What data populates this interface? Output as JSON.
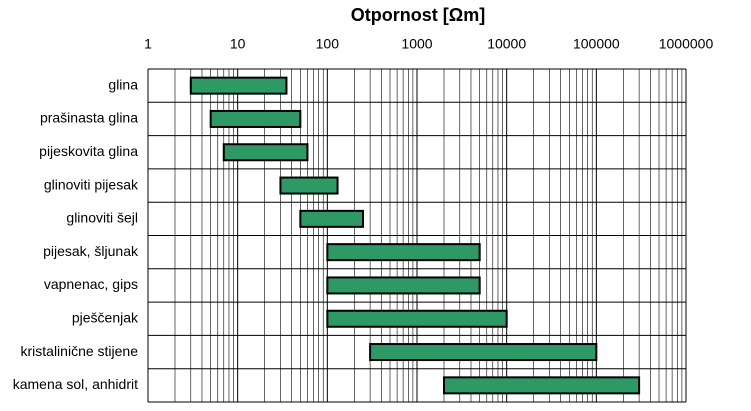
{
  "chart_data": {
    "type": "range-bar",
    "title": "Otpornost  [Ωm]",
    "categories": [
      "glina",
      "prašinasta glina",
      "pijeskovita glina",
      "glinoviti pijesak",
      "glinoviti šejl",
      "pijesak, šljunak",
      "vapnenac, gips",
      "pješčenjak",
      "kristalinične stijene",
      "kamena sol, anhidrit"
    ],
    "ranges": [
      [
        3,
        35
      ],
      [
        5,
        50
      ],
      [
        7,
        60
      ],
      [
        30,
        130
      ],
      [
        50,
        250
      ],
      [
        100,
        5000
      ],
      [
        100,
        5000
      ],
      [
        100,
        10000
      ],
      [
        300,
        100000
      ],
      [
        2000,
        300000
      ]
    ],
    "color": "#2f9966",
    "xscale": "log",
    "xlim": [
      1,
      1000000
    ],
    "xticks": [
      1,
      10,
      100,
      1000,
      10000,
      100000,
      1000000
    ],
    "grid": true,
    "minor_grid": true
  }
}
